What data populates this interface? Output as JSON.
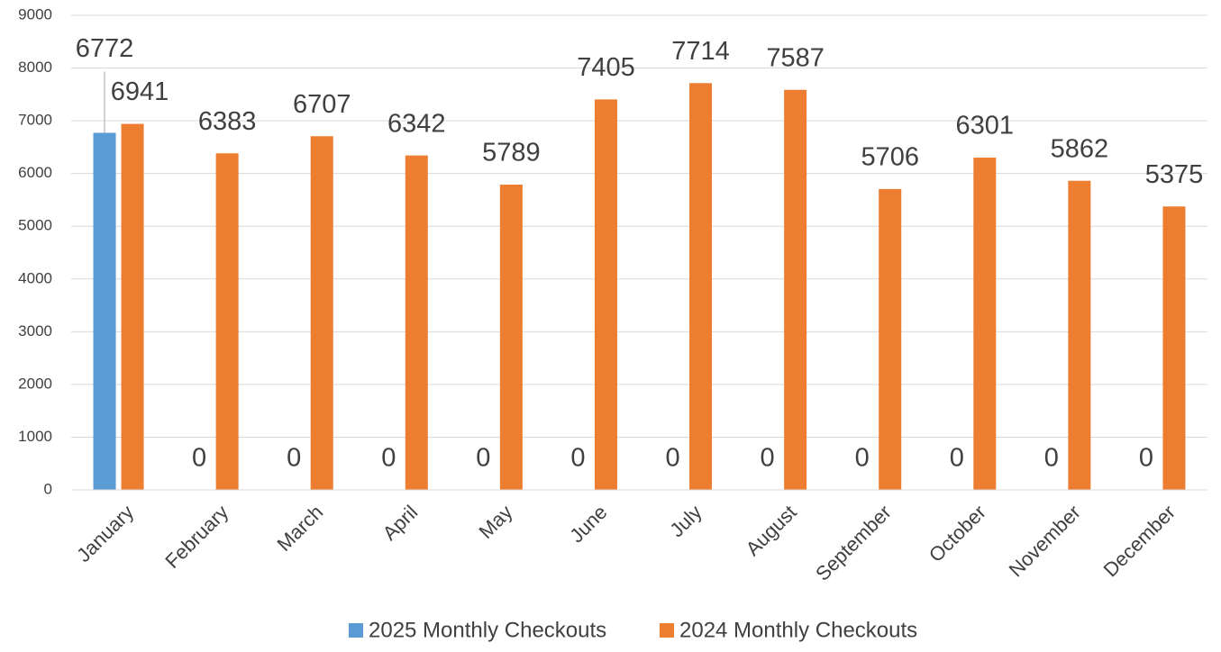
{
  "chart_data": {
    "type": "bar",
    "categories": [
      "January",
      "February",
      "March",
      "April",
      "May",
      "June",
      "July",
      "August",
      "September",
      "October",
      "November",
      "December"
    ],
    "series": [
      {
        "name": "2025 Monthly Checkouts",
        "color": "#5b9bd5",
        "values": [
          6772,
          0,
          0,
          0,
          0,
          0,
          0,
          0,
          0,
          0,
          0,
          0
        ]
      },
      {
        "name": "2024 Monthly Checkouts",
        "color": "#ed7d31",
        "values": [
          6941,
          6383,
          6707,
          6342,
          5789,
          7405,
          7714,
          7587,
          5706,
          6301,
          5862,
          5375
        ]
      }
    ],
    "ylim": [
      0,
      9000
    ],
    "yticks": [
      0,
      1000,
      2000,
      3000,
      4000,
      5000,
      6000,
      7000,
      8000,
      9000
    ],
    "grid": true,
    "legend": "bottom"
  }
}
